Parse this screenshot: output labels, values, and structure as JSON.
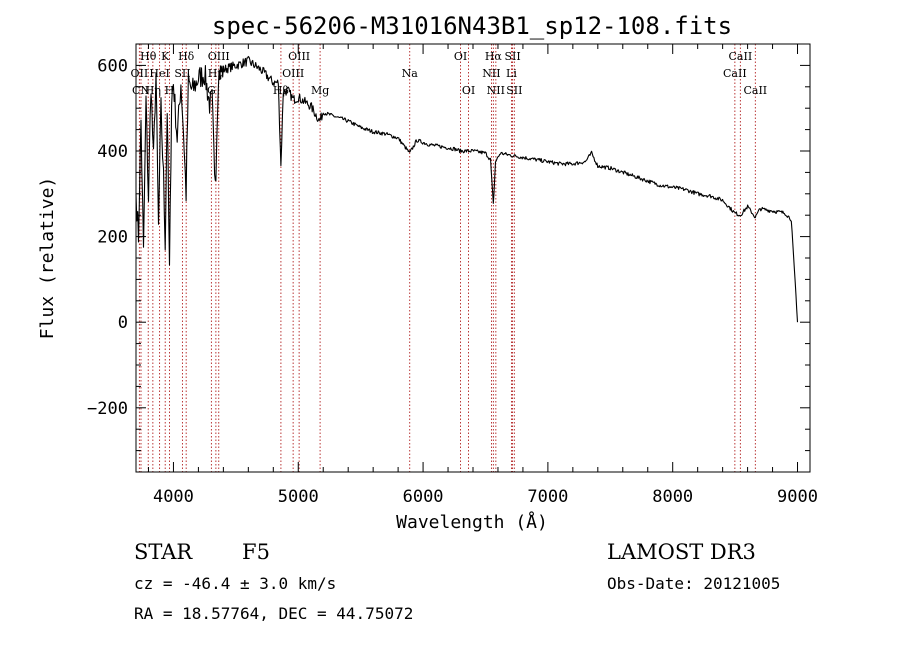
{
  "chart_data": {
    "type": "line",
    "title": "spec-56206-M31016N43B1_sp12-108.fits",
    "xlabel": "Wavelength (Å)",
    "ylabel": "Flux (relative)",
    "xlim": [
      3700,
      9100
    ],
    "ylim": [
      -350,
      650
    ],
    "xticks": [
      4000,
      5000,
      6000,
      7000,
      8000,
      9000
    ],
    "yticks": [
      -200,
      0,
      200,
      400,
      600
    ],
    "spectrum_points": [
      [
        3700,
        300
      ],
      [
        3720,
        200
      ],
      [
        3740,
        470
      ],
      [
        3760,
        160
      ],
      [
        3780,
        520
      ],
      [
        3800,
        290
      ],
      [
        3820,
        560
      ],
      [
        3840,
        380
      ],
      [
        3860,
        580
      ],
      [
        3880,
        220
      ],
      [
        3900,
        500
      ],
      [
        3920,
        340
      ],
      [
        3934,
        190
      ],
      [
        3950,
        500
      ],
      [
        3968,
        120
      ],
      [
        3985,
        520
      ],
      [
        4000,
        560
      ],
      [
        4030,
        430
      ],
      [
        4060,
        560
      ],
      [
        4080,
        450
      ],
      [
        4101,
        300
      ],
      [
        4120,
        560
      ],
      [
        4150,
        540
      ],
      [
        4200,
        570
      ],
      [
        4250,
        580
      ],
      [
        4290,
        510
      ],
      [
        4310,
        520
      ],
      [
        4330,
        330
      ],
      [
        4340,
        360
      ],
      [
        4360,
        580
      ],
      [
        4400,
        590
      ],
      [
        4500,
        600
      ],
      [
        4600,
        610
      ],
      [
        4700,
        590
      ],
      [
        4800,
        560
      ],
      [
        4840,
        560
      ],
      [
        4861,
        365
      ],
      [
        4880,
        540
      ],
      [
        4920,
        540
      ],
      [
        4960,
        520
      ],
      [
        5000,
        525
      ],
      [
        5100,
        505
      ],
      [
        5172,
        470
      ],
      [
        5200,
        490
      ],
      [
        5300,
        480
      ],
      [
        5400,
        470
      ],
      [
        5500,
        455
      ],
      [
        5600,
        445
      ],
      [
        5700,
        440
      ],
      [
        5800,
        430
      ],
      [
        5893,
        395
      ],
      [
        5950,
        425
      ],
      [
        6050,
        415
      ],
      [
        6150,
        410
      ],
      [
        6250,
        405
      ],
      [
        6300,
        400
      ],
      [
        6400,
        400
      ],
      [
        6500,
        395
      ],
      [
        6540,
        380
      ],
      [
        6563,
        275
      ],
      [
        6580,
        375
      ],
      [
        6620,
        395
      ],
      [
        6700,
        390
      ],
      [
        6800,
        385
      ],
      [
        6900,
        380
      ],
      [
        7000,
        375
      ],
      [
        7100,
        370
      ],
      [
        7200,
        370
      ],
      [
        7300,
        375
      ],
      [
        7350,
        395
      ],
      [
        7400,
        365
      ],
      [
        7500,
        360
      ],
      [
        7600,
        350
      ],
      [
        7700,
        340
      ],
      [
        7800,
        330
      ],
      [
        7900,
        320
      ],
      [
        8000,
        315
      ],
      [
        8100,
        310
      ],
      [
        8200,
        300
      ],
      [
        8300,
        295
      ],
      [
        8400,
        285
      ],
      [
        8498,
        255
      ],
      [
        8542,
        250
      ],
      [
        8600,
        270
      ],
      [
        8662,
        245
      ],
      [
        8700,
        265
      ],
      [
        8800,
        260
      ],
      [
        8900,
        255
      ],
      [
        8950,
        240
      ],
      [
        9000,
        0
      ]
    ],
    "spectral_lines": [
      {
        "name": "Hθ",
        "wavelength": 3798,
        "row": 1
      },
      {
        "name": "OII",
        "wavelength": 3727,
        "row": 2
      },
      {
        "name": "CN",
        "wavelength": 3740,
        "row": 3
      },
      {
        "name": "Hη",
        "wavelength": 3835,
        "row": 3
      },
      {
        "name": "HeI",
        "wavelength": 3889,
        "row": 2
      },
      {
        "name": "K",
        "wavelength": 3934,
        "row": 1
      },
      {
        "name": "H",
        "wavelength": 3968,
        "row": 3
      },
      {
        "name": "SII",
        "wavelength": 4072,
        "row": 2
      },
      {
        "name": "Hδ",
        "wavelength": 4102,
        "row": 1
      },
      {
        "name": "G",
        "wavelength": 4304,
        "row": 3
      },
      {
        "name": "OIII",
        "wavelength": 4363,
        "row": 1
      },
      {
        "name": "Hγ",
        "wavelength": 4340,
        "row": 2
      },
      {
        "name": "Hβ",
        "wavelength": 4861,
        "row": 3
      },
      {
        "name": "OIII",
        "wavelength": 4959,
        "row": 2
      },
      {
        "name": "OIII",
        "wavelength": 5007,
        "row": 1
      },
      {
        "name": "Mg",
        "wavelength": 5175,
        "row": 3
      },
      {
        "name": "Na",
        "wavelength": 5893,
        "row": 2
      },
      {
        "name": "OI",
        "wavelength": 6300,
        "row": 1
      },
      {
        "name": "OI",
        "wavelength": 6364,
        "row": 3
      },
      {
        "name": "NII",
        "wavelength": 6548,
        "row": 2
      },
      {
        "name": "Hα",
        "wavelength": 6563,
        "row": 1
      },
      {
        "name": "NII",
        "wavelength": 6583,
        "row": 3
      },
      {
        "name": "SII",
        "wavelength": 6717,
        "row": 1
      },
      {
        "name": "Li",
        "wavelength": 6708,
        "row": 2
      },
      {
        "name": "SII",
        "wavelength": 6731,
        "row": 3
      },
      {
        "name": "CaII",
        "wavelength": 8498,
        "row": 2
      },
      {
        "name": "CaII",
        "wavelength": 8542,
        "row": 1
      },
      {
        "name": "CaII",
        "wavelength": 8662,
        "row": 3
      }
    ]
  },
  "info": {
    "class": "STAR",
    "subclass": "F5",
    "survey": "LAMOST DR3",
    "cz": "cz = -46.4 ± 3.0 km/s",
    "obs_date": "Obs-Date: 20121005",
    "coords": "RA =  18.57764, DEC =  44.75072"
  },
  "colors": {
    "line_marker": "#b22222",
    "spectrum": "#000000"
  }
}
